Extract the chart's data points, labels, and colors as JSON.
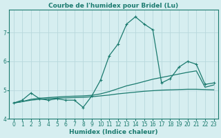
{
  "title": "Courbe de l'humidex pour Bridel (Lu)",
  "xlabel": "Humidex (Indice chaleur)",
  "bg_color": "#d6eef0",
  "grid_color": "#b8d8dc",
  "line_color": "#1a7a6e",
  "x_values": [
    0,
    1,
    2,
    3,
    4,
    5,
    6,
    7,
    8,
    9,
    10,
    11,
    12,
    13,
    14,
    15,
    16,
    17,
    18,
    19,
    20,
    21,
    22,
    23
  ],
  "line1_y": [
    4.55,
    4.65,
    4.9,
    4.7,
    4.65,
    4.7,
    4.65,
    4.65,
    4.4,
    4.8,
    5.35,
    6.2,
    6.6,
    7.3,
    7.55,
    7.3,
    7.1,
    5.25,
    5.4,
    5.8,
    6.0,
    5.9,
    5.2,
    5.25
  ],
  "line2_y": [
    4.55,
    4.6,
    4.68,
    4.72,
    4.74,
    4.76,
    4.78,
    4.79,
    4.8,
    4.82,
    4.87,
    4.95,
    5.05,
    5.15,
    5.22,
    5.3,
    5.38,
    5.44,
    5.5,
    5.56,
    5.62,
    5.67,
    5.1,
    5.18
  ],
  "line3_y": [
    4.55,
    4.6,
    4.65,
    4.68,
    4.7,
    4.72,
    4.73,
    4.74,
    4.75,
    4.77,
    4.8,
    4.83,
    4.87,
    4.9,
    4.93,
    4.96,
    4.98,
    5.0,
    5.01,
    5.02,
    5.03,
    5.03,
    5.02,
    5.01
  ],
  "xlim": [
    -0.5,
    23.5
  ],
  "ylim": [
    4.0,
    7.8
  ],
  "yticks": [
    4,
    5,
    6,
    7
  ],
  "xticks": [
    0,
    1,
    2,
    3,
    4,
    5,
    6,
    7,
    8,
    9,
    10,
    11,
    12,
    13,
    14,
    15,
    16,
    17,
    18,
    19,
    20,
    21,
    22,
    23
  ],
  "title_fontsize": 6.5,
  "label_fontsize": 6.5,
  "tick_fontsize": 5.5
}
